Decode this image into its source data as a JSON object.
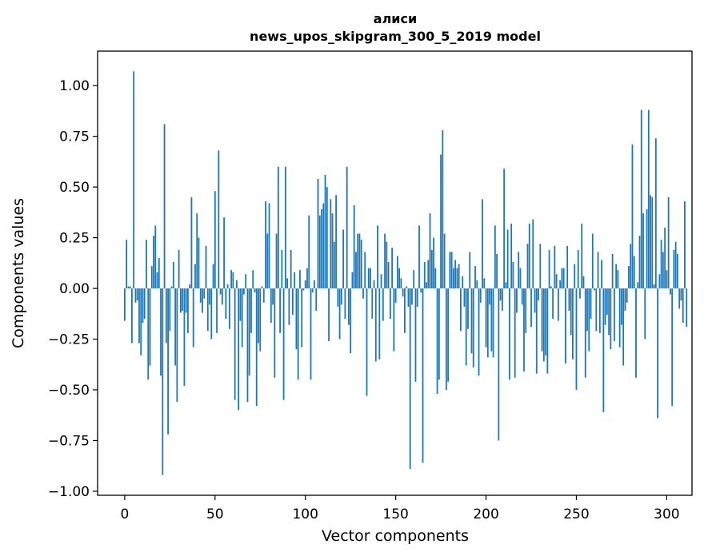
{
  "chart_data": {
    "type": "bar",
    "title_line1": "алиси",
    "title_line2": "news_upos_skipgram_300_5_2019 model",
    "xlabel": "Vector components",
    "ylabel": "Components values",
    "xlim": [
      -15,
      314
    ],
    "ylim": [
      -1.02,
      1.17
    ],
    "xticks": [
      0,
      50,
      100,
      150,
      200,
      250,
      300
    ],
    "xtick_labels": [
      "0",
      "50",
      "100",
      "150",
      "200",
      "250",
      "300"
    ],
    "yticks": [
      -1.0,
      -0.75,
      -0.5,
      -0.25,
      0.0,
      0.25,
      0.5,
      0.75,
      1.0
    ],
    "ytick_labels": [
      "−1.00",
      "−0.75",
      "−0.50",
      "−0.25",
      "0.00",
      "0.25",
      "0.50",
      "0.75",
      "1.00"
    ],
    "bar_color": "#1f77b4",
    "values": [
      -0.16,
      0.24,
      0.01,
      0.01,
      -0.27,
      1.07,
      -0.07,
      -0.06,
      -0.27,
      -0.33,
      -0.17,
      -0.15,
      0.24,
      -0.45,
      -0.38,
      0.11,
      0.26,
      0.31,
      0.08,
      0.15,
      -0.43,
      -0.92,
      0.81,
      -0.27,
      -0.72,
      -0.21,
      0.01,
      0.13,
      -0.38,
      -0.56,
      0.19,
      -0.12,
      -0.11,
      -0.48,
      -0.12,
      -0.22,
      0.02,
      0.45,
      -0.29,
      0.12,
      0.37,
      0.25,
      -0.07,
      -0.12,
      -0.05,
      0.21,
      -0.21,
      -0.08,
      -0.25,
      0.12,
      0.48,
      -0.22,
      0.68,
      -0.03,
      -0.08,
      0.35,
      -0.15,
      0.02,
      -0.2,
      0.09,
      0.08,
      -0.55,
      0.04,
      -0.6,
      -0.16,
      -0.29,
      -0.03,
      0.07,
      -0.56,
      -0.43,
      -0.22,
      0.09,
      -0.02,
      -0.58,
      -0.27,
      -0.31,
      0.01,
      -0.07,
      0.43,
      0.27,
      0.42,
      -0.17,
      -0.08,
      -0.44,
      0.27,
      0.6,
      -0.22,
      0.19,
      -0.55,
      0.6,
      0.05,
      -0.18,
      0.19,
      -0.13,
      0.08,
      -0.3,
      -0.45,
      0.09,
      -0.29,
      -0.01,
      0.04,
      0.1,
      0.36,
      -0.45,
      -0.02,
      0.04,
      -0.11,
      0.54,
      0.36,
      0.39,
      0.42,
      0.56,
      0.5,
      -0.26,
      0.44,
      0.37,
      0.23,
      0.46,
      -0.09,
      -0.25,
      -0.08,
      0.29,
      -0.15,
      0.6,
      -0.18,
      -0.32,
      0.08,
      0.41,
      0.18,
      0.27,
      0.27,
      0.24,
      -0.05,
      0.18,
      -0.53,
      0.1,
      0.1,
      -0.15,
      0.04,
      -0.36,
      0.31,
      -0.35,
      0.07,
      -0.16,
      0.27,
      0.23,
      0.13,
      -0.15,
      0.2,
      -0.31,
      -0.07,
      0.16,
      0.1,
      0.05,
      -0.04,
      -0.22,
      0.01,
      -0.09,
      -0.89,
      -0.08,
      0.09,
      -0.46,
      -0.09,
      0.31,
      -0.02,
      -0.86,
      0.13,
      0.03,
      0.14,
      0.37,
      0.19,
      0.25,
      0.1,
      -0.52,
      -0.45,
      0.66,
      0.78,
      0.27,
      -0.5,
      -0.46,
      0.18,
      0.18,
      0.1,
      0.14,
      0.1,
      0.12,
      -0.21,
      0.06,
      -0.09,
      -0.38,
      -0.2,
      0.18,
      -0.32,
      -0.39,
      0.11,
      0.04,
      -0.43,
      -0.07,
      0.44,
      0.05,
      -0.29,
      -0.34,
      -0.08,
      -0.31,
      -0.34,
      0.31,
      0.17,
      -0.75,
      -0.06,
      -0.11,
      0.59,
      0.03,
      0.29,
      -0.45,
      0.32,
      0.13,
      -0.44,
      -0.12,
      0.18,
      0.1,
      -0.08,
      -0.41,
      -0.22,
      0.22,
      0.32,
      -0.19,
      0.34,
      -0.12,
      -0.42,
      -0.06,
      0.22,
      -0.31,
      -0.36,
      -0.33,
      -0.42,
      0.19,
      0.01,
      -0.15,
      0.21,
      0.07,
      -0.16,
      0.04,
      0.1,
      0.1,
      -0.37,
      0.21,
      -0.11,
      -0.23,
      -0.35,
      0.12,
      -0.5,
      0.19,
      -0.05,
      0.32,
      0.06,
      -0.44,
      -0.21,
      -0.31,
      -0.15,
      0.27,
      -0.01,
      -0.21,
      0.18,
      -0.22,
      0.14,
      -0.61,
      -0.18,
      -0.13,
      -0.23,
      -0.3,
      0.17,
      -0.26,
      0.12,
      0.09,
      -0.29,
      -0.18,
      -0.38,
      -0.11,
      -0.07,
      0.11,
      0.22,
      0.71,
      0.16,
      -0.44,
      0.03,
      0.26,
      0.88,
      0.37,
      -0.25,
      0.39,
      0.88,
      0.46,
      0.45,
      0.02,
      0.74,
      -0.64,
      0.07,
      0.24,
      0.18,
      0.3,
      0.09,
      0.45,
      -0.03,
      -0.58,
      0.19,
      0.23,
      0.17,
      -0.1,
      -0.06,
      -0.17,
      0.43,
      -0.19
    ]
  }
}
